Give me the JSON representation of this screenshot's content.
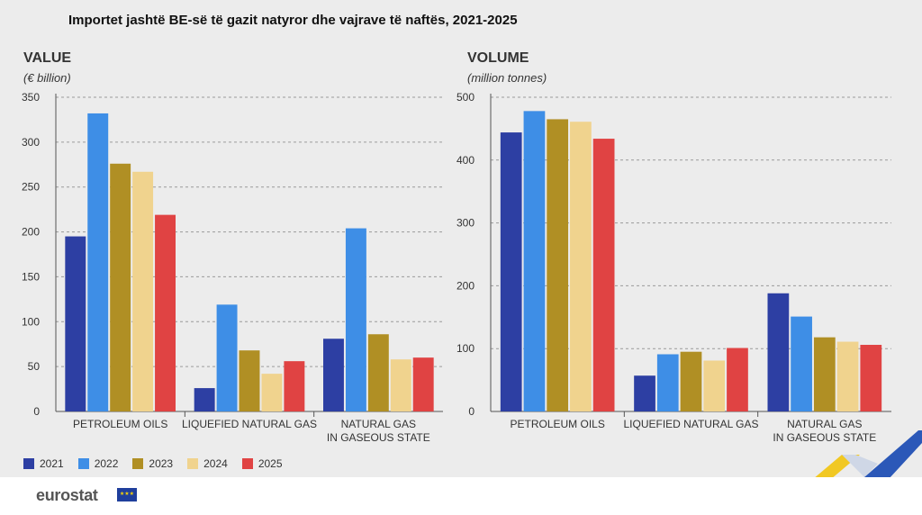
{
  "title": "Importet jashtë BE-së të gazit natyror dhe vajrave të naftës, 2021-2025",
  "colors": {
    "2021": "#2d3fa3",
    "2022": "#3e8ee6",
    "2023": "#b08f24",
    "2024": "#f0d38e",
    "2025": "#e04343"
  },
  "legend": [
    "2021",
    "2022",
    "2023",
    "2024",
    "2025"
  ],
  "footer": {
    "logo_text": "eurostat"
  },
  "chart_data": [
    {
      "type": "bar",
      "panel_title": "VALUE",
      "unit": "(€ billion)",
      "categories": [
        "PETROLEUM OILS",
        "LIQUEFIED NATURAL GAS",
        "NATURAL GAS\nIN GASEOUS STATE"
      ],
      "series": [
        {
          "name": "2021",
          "values": [
            195,
            26,
            81
          ]
        },
        {
          "name": "2022",
          "values": [
            332,
            119,
            204
          ]
        },
        {
          "name": "2023",
          "values": [
            276,
            68,
            86
          ]
        },
        {
          "name": "2024",
          "values": [
            267,
            42,
            58
          ]
        },
        {
          "name": "2025",
          "values": [
            219,
            56,
            60
          ]
        }
      ],
      "ylim": [
        0,
        350
      ],
      "yticks": [
        0,
        50,
        100,
        150,
        200,
        250,
        300,
        350
      ],
      "grid": true
    },
    {
      "type": "bar",
      "panel_title": "VOLUME",
      "unit": "(million tonnes)",
      "categories": [
        "PETROLEUM OILS",
        "LIQUEFIED NATURAL GAS",
        "NATURAL GAS\nIN GASEOUS STATE"
      ],
      "series": [
        {
          "name": "2021",
          "values": [
            444,
            57,
            188
          ]
        },
        {
          "name": "2022",
          "values": [
            478,
            91,
            151
          ]
        },
        {
          "name": "2023",
          "values": [
            465,
            95,
            118
          ]
        },
        {
          "name": "2024",
          "values": [
            461,
            81,
            111
          ]
        },
        {
          "name": "2025",
          "values": [
            434,
            101,
            106
          ]
        }
      ],
      "ylim": [
        0,
        500
      ],
      "yticks": [
        0,
        100,
        200,
        300,
        400,
        500
      ],
      "grid": true
    }
  ]
}
